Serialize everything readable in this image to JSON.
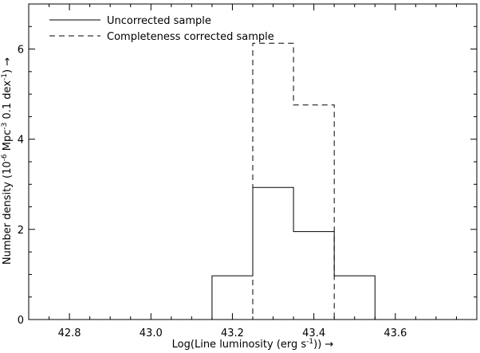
{
  "chart_data": {
    "type": "histogram",
    "xlabel": "Log(Line luminosity (erg s",
    "xlabel_sup": "-1",
    "xlabel_tail": ")) →",
    "ylabel_pre": "Number density (10",
    "ylabel_sup1": "-6",
    "ylabel_mid": " Mpc",
    "ylabel_sup2": "-3",
    "ylabel_post": " 0.1 dex",
    "ylabel_sup3": "-1",
    "ylabel_tail": ") →",
    "xlim": [
      42.7,
      43.8
    ],
    "ylim": [
      0,
      7
    ],
    "grid": false,
    "legend_position": "top-left",
    "x_ticks": [
      42.8,
      43.0,
      43.2,
      43.4,
      43.6
    ],
    "x_tick_labels": [
      "42.8",
      "43.0",
      "43.2",
      "43.4",
      "43.6"
    ],
    "y_ticks": [
      0,
      2,
      4,
      6
    ],
    "y_tick_labels": [
      "0",
      "2",
      "4",
      "6"
    ],
    "series": [
      {
        "name": "Uncorrected sample",
        "style": "solid",
        "bins": [
          {
            "x0": 42.7,
            "x1": 43.15,
            "y": 0
          },
          {
            "x0": 43.15,
            "x1": 43.25,
            "y": 0.97
          },
          {
            "x0": 43.25,
            "x1": 43.35,
            "y": 2.93
          },
          {
            "x0": 43.35,
            "x1": 43.45,
            "y": 1.95
          },
          {
            "x0": 43.45,
            "x1": 43.55,
            "y": 0.97
          },
          {
            "x0": 43.55,
            "x1": 43.8,
            "y": 0
          }
        ]
      },
      {
        "name": "Completeness corrected sample",
        "style": "dashed",
        "bins": [
          {
            "x0": 42.7,
            "x1": 43.25,
            "y": 0
          },
          {
            "x0": 43.25,
            "x1": 43.35,
            "y": 6.13
          },
          {
            "x0": 43.35,
            "x1": 43.45,
            "y": 4.76
          },
          {
            "x0": 43.45,
            "x1": 43.8,
            "y": 0
          }
        ]
      }
    ]
  }
}
